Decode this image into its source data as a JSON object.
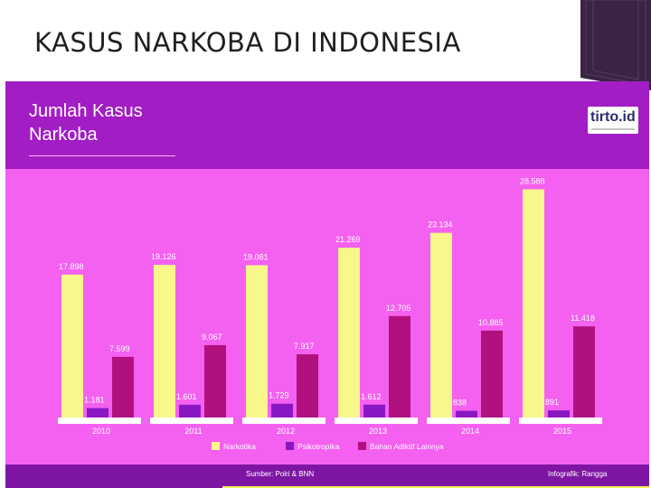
{
  "slide": {
    "title": "KASUS NARKOBA DI INDONESIA"
  },
  "infographic": {
    "title": "Jumlah Kasus\nNarkoba",
    "logo": "tirto.id",
    "source": "Sumber: Polri & BNN",
    "credit": "Infografik: Rangga"
  },
  "colors": {
    "panel_bg": "#f461f0",
    "header_bg": "#a21dc4",
    "footer_bg": "#7f16a3",
    "narkotika": "#f7f78c",
    "psikotropika": "#8a17c4",
    "bahan_adiktif": "#b0117f"
  },
  "chart_data": {
    "type": "bar",
    "title": "",
    "xlabel": "",
    "ylabel": "",
    "categories": [
      "2010",
      "2011",
      "2012",
      "2013",
      "2014",
      "2015"
    ],
    "series": [
      {
        "name": "Narkotika",
        "values": [
          17898,
          19126,
          19081,
          21269,
          23134,
          28588
        ],
        "labels": [
          "17.898",
          "19.126",
          "19.081",
          "21.269",
          "23.134",
          "28.588"
        ]
      },
      {
        "name": "Psikotropika",
        "values": [
          1181,
          1601,
          1729,
          1612,
          838,
          891
        ],
        "labels": [
          "1.181",
          "1.601",
          "1.729",
          "1.612",
          "838",
          "891"
        ]
      },
      {
        "name": "Bahan Adiktif Lainnya",
        "values": [
          7599,
          9067,
          7917,
          12705,
          10885,
          11418
        ],
        "labels": [
          "7.599",
          "9.067",
          "7.917",
          "12.705",
          "10.885",
          "11.418"
        ]
      }
    ],
    "ylim": [
      0,
      30000
    ],
    "grid": false,
    "legend": "bottom"
  }
}
